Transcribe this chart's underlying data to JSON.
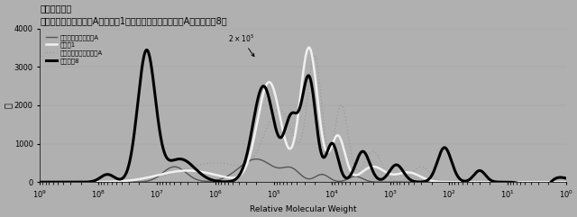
{
  "title_line1": "分子量分布図",
  "title_line2": "（濃縮コーヒーエキスA、比較品1、インスタントコーヒーA、本発明品8）",
  "xlabel": "Relative Molecular Weight",
  "ylabel": "量",
  "ylim": [
    0,
    4000
  ],
  "annotation": "2×10⁵",
  "legend": [
    {
      "label": "濃縮コーヒーエキスA",
      "color": "#555555",
      "lw": 1.2,
      "ls": "-"
    },
    {
      "label": "比較品1",
      "color": "#ffffff",
      "lw": 1.8,
      "ls": "-"
    },
    {
      "label": "インスタントコーヒーA",
      "color": "#888888",
      "lw": 1.0,
      "ls": "dotted"
    },
    {
      "label": "本発明品8",
      "color": "#000000",
      "lw": 2.2,
      "ls": "-"
    }
  ],
  "background_color": "#b0b0b0",
  "x_ticks": [
    1000000000.0,
    100000000.0,
    10000000.0,
    1000000.0,
    100000.0,
    10000.0,
    1000.0,
    100.0,
    10.0,
    1.0
  ],
  "x_min": 1000000000.0,
  "x_max": 1.0
}
